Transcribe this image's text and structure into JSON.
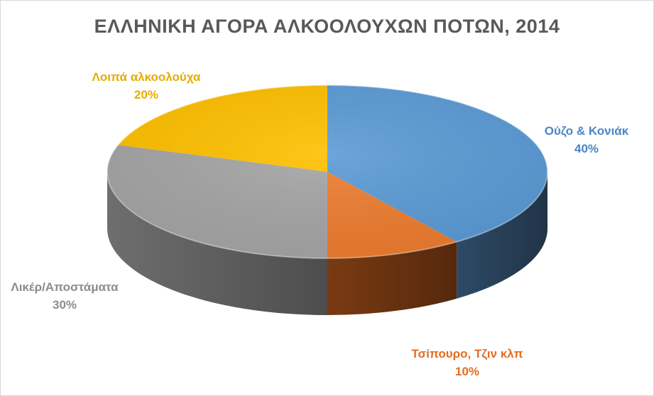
{
  "chart_data": {
    "type": "pie",
    "title": "ΕΛΛΗΝΙΚΗ ΑΓΟΡΑ ΑΛΚΟΟΛΟΥΧΩΝ ΠΟΤΩΝ, 2014",
    "three_d": true,
    "slices": [
      {
        "label": "Ούζο & Κονιάκ",
        "value": 40,
        "value_label": "40%",
        "color": "#5B9BD5",
        "side_color": "#2E4A66"
      },
      {
        "label": "Τσίπουρο, Τζιν κλπ",
        "value": 10,
        "value_label": "10%",
        "color": "#ED7D31",
        "side_color": "#7A3A12"
      },
      {
        "label": "Λικέρ/Αποστάματα",
        "value": 30,
        "value_label": "30%",
        "color": "#A5A5A5",
        "side_color": "#6E6E6E"
      },
      {
        "label": "Λοιπά αλκοολούχα",
        "value": 20,
        "value_label": "20%",
        "color": "#FFC000",
        "side_color": "#9C7500"
      }
    ],
    "legend": "none",
    "data_labels": "outside"
  }
}
